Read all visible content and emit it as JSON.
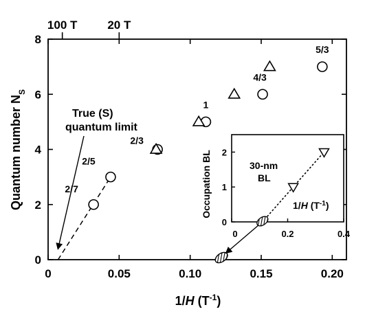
{
  "chart_data": [
    {
      "type": "scatter",
      "title": "",
      "xlabel": "1/H (T-1)",
      "xlabel_parts": {
        "base": "1/",
        "var": "H",
        "open": " (T",
        "sup": "-1",
        "close": ")"
      },
      "ylabel": "Quantum number NS",
      "ylabel_parts": {
        "base": "Quantum number N",
        "sub": "S"
      },
      "xlim": [
        0,
        0.21
      ],
      "ylim": [
        0,
        8
      ],
      "xticks": [
        0,
        0.05,
        0.1,
        0.15,
        0.2
      ],
      "xtick_labels": [
        "0",
        "0.05",
        "0.10",
        "0.15",
        "0.20"
      ],
      "yticks": [
        0,
        2,
        4,
        6,
        8
      ],
      "ytick_labels": [
        "0",
        "2",
        "4",
        "6",
        "8"
      ],
      "top_axis": {
        "ticks": [
          {
            "x": 0.01,
            "label": "100 T"
          },
          {
            "x": 0.05,
            "label": "20 T"
          }
        ]
      },
      "series": [
        {
          "marker": "circle",
          "points": [
            {
              "x": 0.032,
              "y": 2,
              "label": "2/7"
            },
            {
              "x": 0.044,
              "y": 3,
              "label": "2/5"
            },
            {
              "x": 0.077,
              "y": 4,
              "label": "2/3"
            },
            {
              "x": 0.111,
              "y": 5,
              "label": "1"
            },
            {
              "x": 0.151,
              "y": 6,
              "label": "4/3"
            },
            {
              "x": 0.193,
              "y": 7,
              "label": "5/3"
            }
          ]
        },
        {
          "marker": "triangle-up",
          "points": [
            {
              "x": 0.076,
              "y": 4
            },
            {
              "x": 0.106,
              "y": 5
            },
            {
              "x": 0.131,
              "y": 6
            },
            {
              "x": 0.156,
              "y": 7
            }
          ]
        },
        {
          "marker": "hatched-ellipse",
          "points": [
            {
              "x": 0.122,
              "y": 0
            }
          ]
        }
      ],
      "fit_line": {
        "style": "dashed",
        "from": [
          0.007,
          0
        ],
        "to": [
          0.044,
          3
        ]
      },
      "annotations": {
        "quantum_limit_line1": "True (S)",
        "quantum_limit_line2": "quantum limit",
        "arrow_to": [
          0.007,
          0.4
        ]
      }
    },
    {
      "type": "scatter",
      "title": "",
      "label_line1": "30-nm",
      "label_line2": "BL",
      "xlabel": "1/H (T-1)",
      "xlabel_parts": {
        "base": "1/",
        "var": "H",
        "open": " (T",
        "sup": "-1",
        "close": ")"
      },
      "ylabel": "Occupation BL",
      "xlim": [
        0,
        0.4
      ],
      "ylim": [
        0,
        2.5
      ],
      "xticks": [
        0,
        0.2,
        0.4
      ],
      "xtick_labels": [
        "0",
        "0.2",
        "0.4"
      ],
      "yticks": [
        0,
        1,
        2
      ],
      "ytick_labels": [
        "0",
        "1",
        "2"
      ],
      "series": [
        {
          "marker": "triangle-down",
          "points": [
            {
              "x": 0.22,
              "y": 1
            },
            {
              "x": 0.33,
              "y": 2
            }
          ]
        },
        {
          "marker": "hatched-ellipse",
          "points": [
            {
              "x": 0.11,
              "y": 0
            }
          ]
        }
      ],
      "fit_line": {
        "style": "dotted",
        "from": [
          0.11,
          0
        ],
        "to": [
          0.335,
          2.05
        ]
      }
    }
  ]
}
